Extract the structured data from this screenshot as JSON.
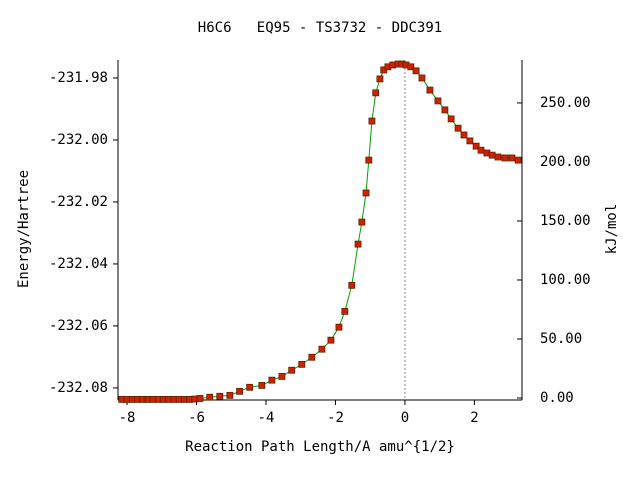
{
  "chart_data": {
    "type": "line",
    "title": "H6C6   EQ95 - TS3732 - DDC391",
    "x_label": "Reaction Path Length/A amu^{1/2}",
    "y_label": "Energy/Hartree",
    "y2_label": "kJ/mol",
    "xlim": [
      -8.26,
      3.37
    ],
    "ylim": [
      -232.0839,
      -231.9742
    ],
    "y2lim": [
      -1.7,
      286.4
    ],
    "xticks": [
      -8,
      -6,
      -4,
      -2,
      0,
      2
    ],
    "yticks": [
      -231.98,
      {
        "value": -232,
        "label": "-232.00"
      },
      -232.02,
      -232.04,
      -232.06,
      -232.08
    ],
    "y2ticks": [
      {
        "value": 0,
        "label": "0.00"
      },
      {
        "value": 50,
        "label": "50.00"
      },
      {
        "value": 100,
        "label": "100.00"
      },
      {
        "value": 150,
        "label": "150.00"
      },
      {
        "value": 200,
        "label": "200.00"
      },
      {
        "value": 250,
        "label": "250.00"
      }
    ],
    "vline": 0,
    "x": [
      -8.15,
      -8.0,
      -7.85,
      -7.7,
      -7.55,
      -7.4,
      -7.25,
      -7.1,
      -6.95,
      -6.8,
      -6.65,
      -6.5,
      -6.35,
      -6.2,
      -6.05,
      -5.9,
      -5.62,
      -5.33,
      -5.04,
      -4.76,
      -4.47,
      -4.12,
      -3.83,
      -3.54,
      -3.26,
      -2.97,
      -2.68,
      -2.39,
      -2.13,
      -1.9,
      -1.73,
      -1.53,
      -1.35,
      -1.24,
      -1.12,
      -1.04,
      -0.95,
      -0.84,
      -0.72,
      -0.61,
      -0.49,
      -0.35,
      -0.2,
      -0.09,
      0.03,
      0.17,
      0.32,
      0.49,
      0.72,
      0.95,
      1.15,
      1.33,
      1.53,
      1.7,
      1.87,
      2.05,
      2.19,
      2.36,
      2.51,
      2.68,
      2.88,
      3.08,
      3.26
    ],
    "series": [
      {
        "color": "#00a000",
        "marker_color": "#cc2200",
        "values": [
          -232.0837,
          -232.0837,
          -232.0837,
          -232.0837,
          -232.0837,
          -232.0837,
          -232.0837,
          -232.0837,
          -232.0837,
          -232.0837,
          -232.0837,
          -232.0837,
          -232.0837,
          -232.0837,
          -232.0836,
          -232.0834,
          -232.083,
          -232.0827,
          -232.0824,
          -232.0811,
          -232.0798,
          -232.0792,
          -232.0775,
          -232.0763,
          -232.0743,
          -232.0724,
          -232.0701,
          -232.0675,
          -232.0646,
          -232.0604,
          -232.0553,
          -232.0469,
          -232.0336,
          -232.0265,
          -232.0171,
          -232.0065,
          -231.9939,
          -231.9848,
          -231.9803,
          -231.9774,
          -231.9764,
          -231.9758,
          -231.9755,
          -231.9755,
          -231.9758,
          -231.9764,
          -231.9777,
          -231.98,
          -231.9839,
          -231.9874,
          -231.9903,
          -231.9932,
          -231.9962,
          -231.9984,
          -232.0003,
          -232.002,
          -232.0033,
          -232.0042,
          -232.0049,
          -232.0055,
          -232.0058,
          -232.0058,
          -232.0065
        ]
      }
    ]
  }
}
